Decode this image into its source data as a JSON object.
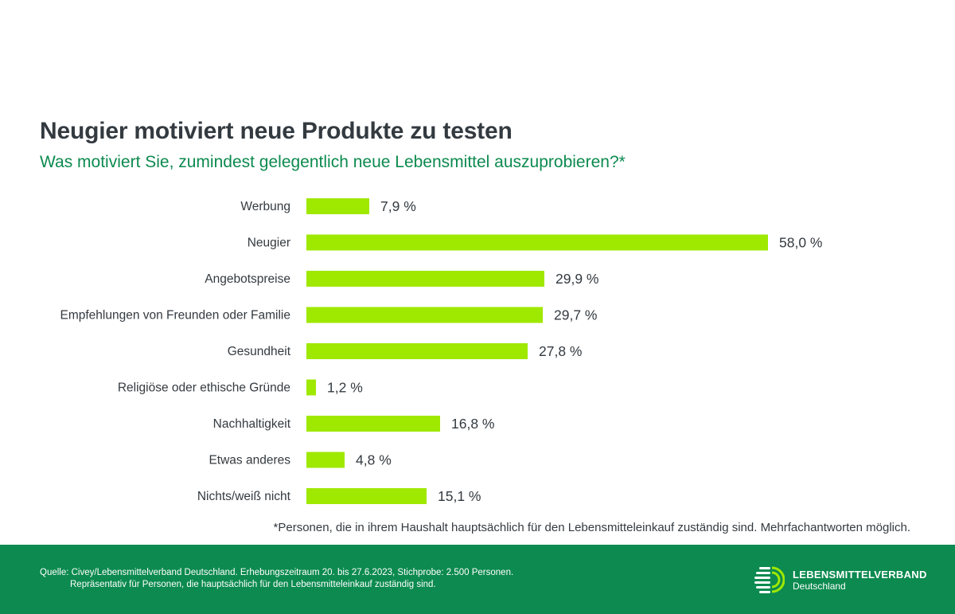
{
  "chart_data": {
    "type": "bar",
    "orientation": "horizontal",
    "title": "Neugier motiviert neue Produkte zu testen",
    "subtitle": "Was motiviert Sie, zumindest gelegentlich neue Lebensmittel auszuprobieren?*",
    "categories": [
      "Werbung",
      "Neugier",
      "Angebotspreise",
      "Empfehlungen von Freunden oder Familie",
      "Gesundheit",
      "Religiöse oder ethische Gründe",
      "Nachhaltigkeit",
      "Etwas anderes",
      "Nichts/weiß nicht"
    ],
    "values": [
      7.9,
      58.0,
      29.9,
      29.7,
      27.8,
      1.2,
      16.8,
      4.8,
      15.1
    ],
    "value_labels": [
      "7,9 %",
      "58,0 %",
      "29,9 %",
      "29,7 %",
      "27,8 %",
      "1,2 %",
      "16,8 %",
      "4,8 %",
      "15,1 %"
    ],
    "unit": "%",
    "xlim": [
      0,
      58.0
    ],
    "grid": false,
    "legend": "none",
    "bar_color": "#9fe800"
  },
  "footnote": "*Personen, die in ihrem Haushalt hauptsächlich für den Lebensmitteleinkauf zuständig sind. Mehrfachantworten möglich.",
  "footer": {
    "source_line1": "Quelle: Civey/Lebensmittelverband Deutschland. Erhebungszeitraum 20. bis 27.6.2023, Stichprobe: 2.500 Personen.",
    "source_line2": "Repräsentativ für Personen, die hauptsächlich für den Lebensmitteleinkauf zuständig sind.",
    "logo_name": "LEBENSMITTELVERBAND",
    "logo_sub": "Deutschland"
  },
  "colors": {
    "brand_green": "#0c8a4f",
    "bar": "#9fe800",
    "text": "#333a40"
  }
}
